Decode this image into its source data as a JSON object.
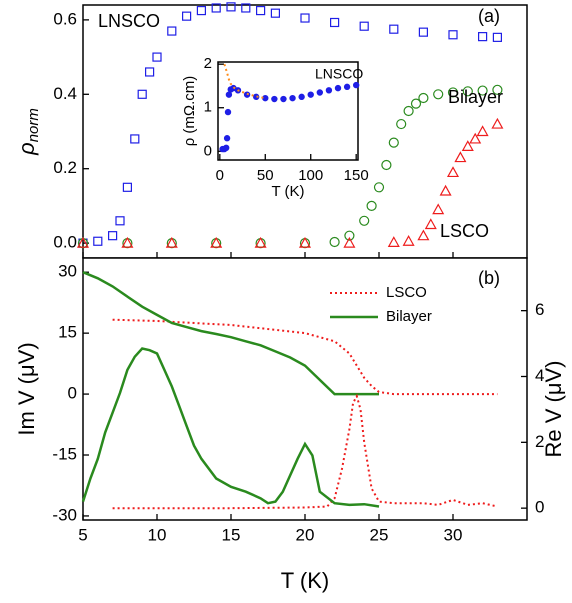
{
  "chart_data": [
    {
      "type": "scatter",
      "panel": "(a)",
      "y_label": "ρ",
      "y_label_sub": "norm",
      "ylim": [
        -0.04,
        0.64
      ],
      "xlim": [
        5,
        35
      ],
      "yticks": [
        {
          "value": 0.0,
          "label": "0.0"
        },
        0.2,
        0.4,
        0.6
      ],
      "annotations": [
        {
          "text": "LNSCO",
          "color": "#1f1fe6"
        },
        {
          "text": "Bilayer",
          "color": "#2a8a1e"
        },
        {
          "text": "LSCO",
          "color": "#ee1c1c"
        },
        {
          "text": "(a)",
          "color": "#000000"
        }
      ],
      "series": [
        {
          "name": "LNSCO",
          "color": "#1f1fe6",
          "marker": "square",
          "x": [
            5,
            6,
            7,
            7.5,
            8,
            8.5,
            9,
            9.5,
            10,
            11,
            12,
            13,
            14,
            15,
            16,
            17,
            18,
            20,
            22,
            24,
            26,
            28,
            30,
            32,
            33
          ],
          "values": [
            0.0,
            0.005,
            0.02,
            0.06,
            0.15,
            0.28,
            0.4,
            0.46,
            0.5,
            0.57,
            0.61,
            0.625,
            0.632,
            0.635,
            0.632,
            0.625,
            0.618,
            0.605,
            0.593,
            0.583,
            0.575,
            0.567,
            0.56,
            0.555,
            0.553
          ]
        },
        {
          "name": "Bilayer",
          "color": "#2a8a1e",
          "marker": "circle",
          "x": [
            5,
            8,
            11,
            14,
            17,
            20,
            22,
            23,
            24,
            24.5,
            25,
            25.5,
            26,
            26.5,
            27,
            27.5,
            28,
            29,
            30,
            31,
            32,
            33
          ],
          "values": [
            0,
            0,
            0,
            0,
            0,
            0,
            0.003,
            0.02,
            0.06,
            0.1,
            0.15,
            0.21,
            0.27,
            0.32,
            0.355,
            0.375,
            0.39,
            0.4,
            0.405,
            0.408,
            0.41,
            0.412
          ]
        },
        {
          "name": "LSCO",
          "color": "#ee1c1c",
          "marker": "triangle",
          "x": [
            5,
            8,
            11,
            14,
            17,
            20,
            23,
            26,
            27,
            28,
            28.5,
            29,
            29.5,
            30,
            30.5,
            31,
            31.5,
            32,
            33
          ],
          "values": [
            0,
            0,
            0,
            0,
            0,
            0,
            0,
            0.002,
            0.005,
            0.02,
            0.05,
            0.09,
            0.14,
            0.19,
            0.23,
            0.26,
            0.28,
            0.3,
            0.32
          ]
        }
      ]
    },
    {
      "type": "scatter",
      "x_label": "T (K)",
      "y_label": "ρ (mΩ.cm)",
      "xlim": [
        -2,
        152
      ],
      "ylim": [
        -0.2,
        2.05
      ],
      "xticks": [
        0,
        50,
        100,
        150
      ],
      "yticks": [
        0,
        1,
        2
      ],
      "annotations": [
        {
          "text": "LNSCO",
          "color": "#1f1fe6"
        }
      ],
      "series": [
        {
          "name": "LNSCO",
          "color": "#1f1fe6",
          "marker": "dot",
          "x": [
            3,
            5,
            7,
            8,
            9,
            10,
            12,
            15,
            20,
            30,
            40,
            50,
            60,
            70,
            80,
            90,
            100,
            110,
            120,
            130,
            140,
            150
          ],
          "values": [
            0.05,
            0.05,
            0.08,
            0.3,
            0.9,
            1.3,
            1.42,
            1.45,
            1.4,
            1.3,
            1.25,
            1.22,
            1.2,
            1.2,
            1.22,
            1.25,
            1.3,
            1.35,
            1.4,
            1.45,
            1.48,
            1.52
          ]
        },
        {
          "name": "fit",
          "color": "#ff8c1a",
          "dash": true,
          "x": [
            5,
            8,
            10,
            12,
            15,
            20,
            30,
            40,
            50
          ],
          "values": [
            2.0,
            1.8,
            1.65,
            1.55,
            1.47,
            1.4,
            1.32,
            1.26,
            1.22
          ]
        }
      ]
    },
    {
      "type": "line",
      "panel": "(b)",
      "x_label": "T (K)",
      "y_label": "Im V (μV)",
      "y2_label": "Re V (μV)",
      "xlim": [
        5,
        35
      ],
      "ylim": [
        -31,
        33.5
      ],
      "y2lim": [
        -0.36,
        7.6
      ],
      "xticks": [
        5,
        10,
        15,
        20,
        25,
        30
      ],
      "yticks": [
        -30,
        -15,
        0,
        15,
        30
      ],
      "y2ticks": [
        0,
        2,
        4,
        6
      ],
      "legend": "upper right",
      "annotations": [
        {
          "text": "(b)",
          "color": "#000000"
        }
      ],
      "series": [
        {
          "name": "LSCO",
          "color": "#ee1c1c",
          "dash": true,
          "x": [
            7,
            10,
            15,
            20,
            22,
            23,
            23.5,
            24,
            24.5,
            25,
            26,
            28,
            30,
            33
          ],
          "values": [
            18.3,
            18,
            17,
            15,
            13,
            10,
            7,
            4,
            2,
            0.5,
            0,
            0,
            0,
            0
          ]
        },
        {
          "name": "Bilayer",
          "color": "#2a8a1e",
          "x": [
            5,
            6,
            7,
            8,
            9,
            10,
            11,
            12,
            13,
            14,
            15,
            16,
            17,
            18,
            19,
            20,
            21,
            22,
            23,
            24,
            25
          ],
          "values": [
            30,
            28.5,
            26.5,
            24,
            21.5,
            19.5,
            17.5,
            16.5,
            15.5,
            14.8,
            14,
            13,
            12,
            10.5,
            9,
            7,
            3.5,
            0,
            0,
            0,
            0
          ]
        },
        {
          "name": "LSCO",
          "color": "#ee1c1c",
          "dash": true,
          "axis": "y2",
          "x": [
            7,
            10,
            15,
            20,
            21.5,
            22,
            22.5,
            23,
            23.25,
            23.5,
            23.75,
            24,
            24.5,
            25,
            26,
            28,
            29,
            30,
            31,
            32,
            33
          ],
          "values": [
            0,
            0,
            0,
            0.02,
            0.05,
            0.3,
            1.2,
            2.4,
            3.2,
            3.4,
            3.0,
            2.0,
            0.6,
            0.2,
            0.15,
            0.15,
            0.1,
            0.25,
            0.1,
            0.15,
            0.05
          ]
        },
        {
          "name": "Bilayer",
          "color": "#2a8a1e",
          "axis": "y2",
          "x": [
            5,
            5.5,
            6,
            6.5,
            7,
            7.5,
            8,
            8.5,
            9,
            9.5,
            10,
            10.5,
            11,
            11.5,
            12,
            12.5,
            13,
            14,
            15,
            16,
            17,
            17.5,
            18,
            18.5,
            19,
            19.5,
            20,
            20.5,
            21,
            22,
            23,
            24,
            25
          ],
          "values": [
            0.2,
            0.9,
            1.5,
            2.3,
            2.9,
            3.5,
            4.2,
            4.6,
            4.85,
            4.8,
            4.7,
            4.2,
            3.7,
            3.1,
            2.5,
            1.9,
            1.5,
            0.9,
            0.65,
            0.5,
            0.3,
            0.15,
            0.2,
            0.5,
            1.0,
            1.5,
            1.95,
            1.6,
            0.5,
            0.15,
            0.1,
            0.12,
            0.05
          ]
        }
      ]
    }
  ]
}
